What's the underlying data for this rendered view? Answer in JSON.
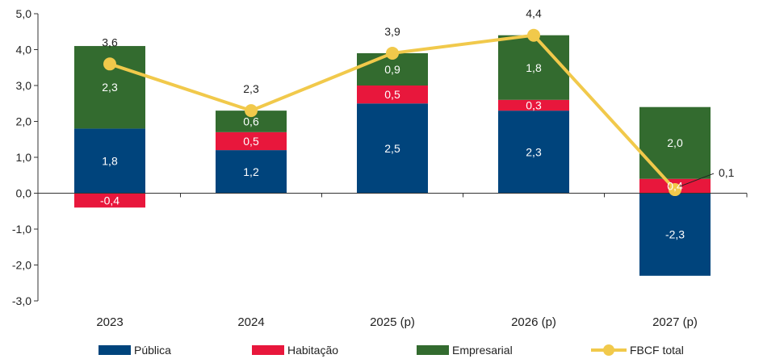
{
  "chart_data": {
    "type": "bar",
    "stacked": true,
    "title": "",
    "xlabel": "",
    "ylabel": "",
    "ylim": [
      -3.0,
      5.0
    ],
    "yticks": [
      "5,0",
      "4,0",
      "3,0",
      "2,0",
      "1,0",
      "0,0",
      "-1,0",
      "-2,0",
      "-3,0"
    ],
    "ytick_values": [
      5,
      4,
      3,
      2,
      1,
      0,
      -1,
      -2,
      -3
    ],
    "grid": false,
    "legend_position": "bottom",
    "categories": [
      "2023",
      "2024",
      "2025 (p)",
      "2026 (p)",
      "2027 (p)"
    ],
    "series": [
      {
        "name": "Pública",
        "color": "#00447c",
        "values": [
          1.8,
          1.2,
          2.5,
          2.3,
          -2.3
        ],
        "labels": [
          "1,8",
          "1,2",
          "2,5",
          "2,3",
          "-2,3"
        ]
      },
      {
        "name": "Habitação",
        "color": "#e8173c",
        "values": [
          -0.4,
          0.5,
          0.5,
          0.3,
          0.4
        ],
        "labels": [
          "-0,4",
          "0,5",
          "0,5",
          "0,3",
          "0,4"
        ]
      },
      {
        "name": "Empresarial",
        "color": "#336b2f",
        "values": [
          2.3,
          0.6,
          0.9,
          1.8,
          2.0
        ],
        "labels": [
          "2,3",
          "0,6",
          "0,9",
          "1,8",
          "2,0"
        ]
      }
    ],
    "line": {
      "name": "FBCF total",
      "color": "#f1c94b",
      "values": [
        3.6,
        2.3,
        3.9,
        4.4,
        0.1
      ],
      "labels": [
        "3,6",
        "2,3",
        "3,9",
        "4,4",
        "0,1"
      ]
    }
  }
}
